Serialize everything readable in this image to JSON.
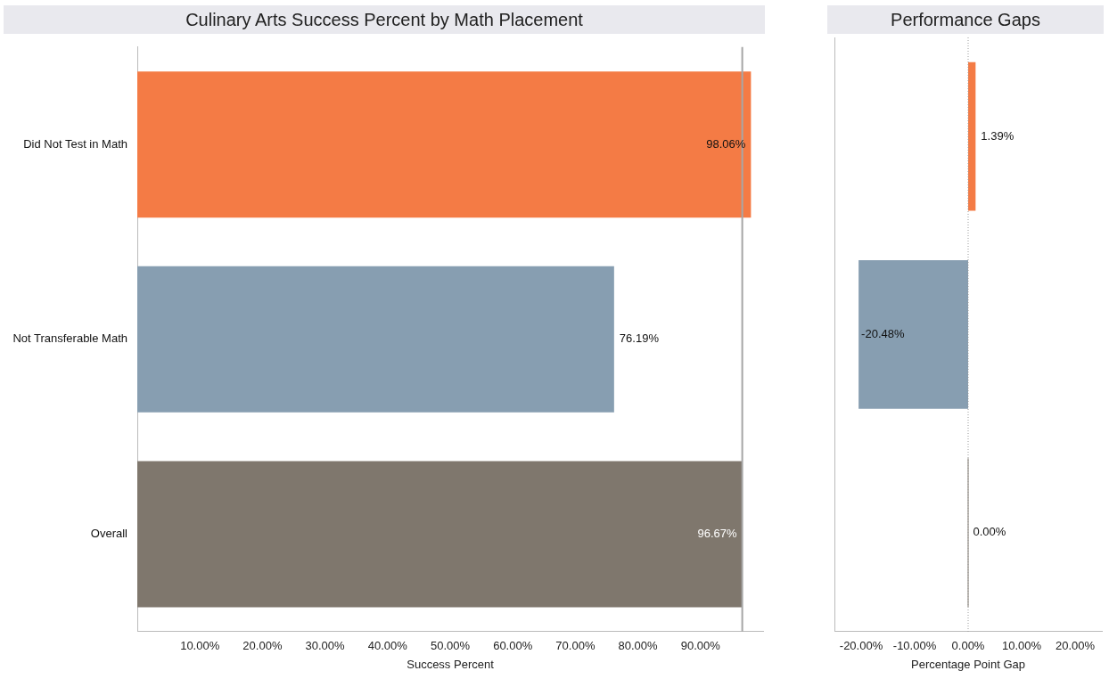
{
  "chart_data": [
    {
      "type": "bar",
      "orientation": "horizontal",
      "title": "Culinary Arts Success Percent by Math Placement",
      "xlabel": "Success Percent",
      "categories": [
        "Did Not Test in Math",
        "Not Transferable Math",
        "Overall"
      ],
      "values": [
        98.06,
        76.19,
        96.67
      ],
      "colors": [
        "#f47b45",
        "#879eb1",
        "#7f776d"
      ],
      "value_labels": [
        "98.06%",
        "76.19%",
        "96.67%"
      ],
      "xlim": [
        0,
        100
      ],
      "xticks": [
        {
          "value": 10,
          "label": "10.00%"
        },
        {
          "value": 20,
          "label": "20.00%"
        },
        {
          "value": 30,
          "label": "30.00%"
        },
        {
          "value": 40,
          "label": "40.00%"
        },
        {
          "value": 50,
          "label": "50.00%"
        },
        {
          "value": 60,
          "label": "60.00%"
        },
        {
          "value": 70,
          "label": "70.00%"
        },
        {
          "value": 80,
          "label": "80.00%"
        },
        {
          "value": 90,
          "label": "90.00%"
        }
      ],
      "ref_lines": [
        {
          "axis": "x",
          "value": 96.67,
          "color": "#a6a6a6",
          "line_style": "solid"
        }
      ]
    },
    {
      "type": "bar",
      "orientation": "horizontal",
      "title": "Performance Gaps",
      "xlabel": "Percentage Point Gap",
      "categories": [
        null,
        null,
        null
      ],
      "values": [
        1.39,
        -20.48,
        0.0
      ],
      "colors": [
        "#f47b45",
        "#879eb1",
        "#7f776d"
      ],
      "value_labels": [
        "1.39%",
        "-20.48%",
        "0.00%"
      ],
      "xlim": [
        -25,
        25
      ],
      "xticks": [
        {
          "value": -20,
          "label": "-20.00%"
        },
        {
          "value": -10,
          "label": "-10.00%"
        },
        {
          "value": 0,
          "label": "0.00%"
        },
        {
          "value": 10,
          "label": "10.00%"
        },
        {
          "value": 20,
          "label": "20.00%"
        }
      ],
      "tick_labels": "x",
      "ref_lines": [
        {
          "axis": "x",
          "value": 0,
          "color": "#999999",
          "line_style": "dotted"
        }
      ]
    }
  ]
}
